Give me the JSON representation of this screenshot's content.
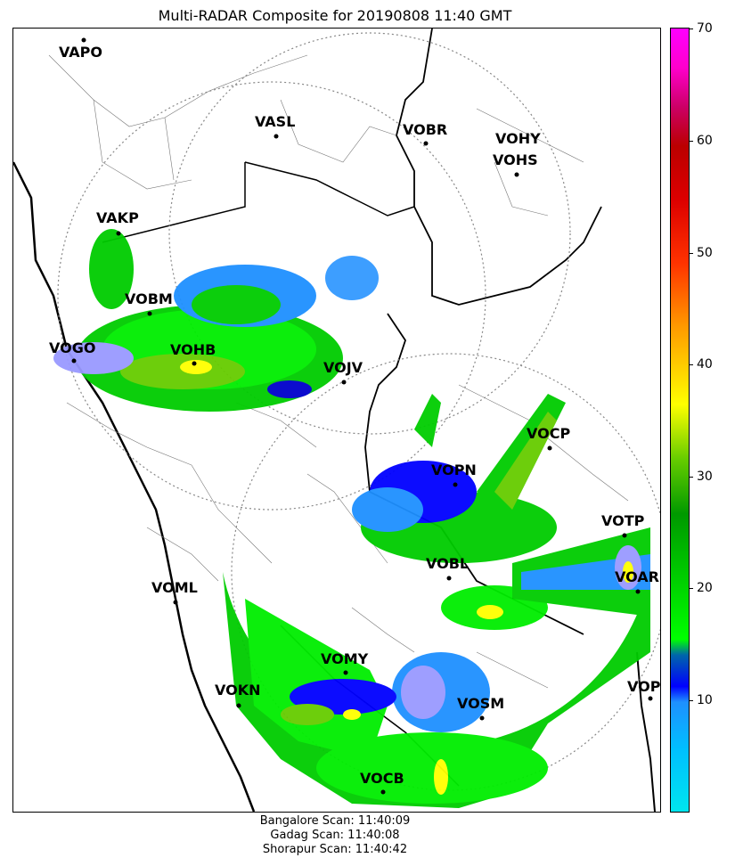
{
  "title": "Multi-RADAR Composite for 20190808 11:40 GMT",
  "stations": [
    {
      "id": "VAPO"
    },
    {
      "id": "VASL"
    },
    {
      "id": "VOBR"
    },
    {
      "id": "VOHY"
    },
    {
      "id": "VOHS"
    },
    {
      "id": "VAKP"
    },
    {
      "id": "VOBM"
    },
    {
      "id": "VOGO"
    },
    {
      "id": "VOHB"
    },
    {
      "id": "VOJV"
    },
    {
      "id": "VOCP"
    },
    {
      "id": "VOPN"
    },
    {
      "id": "VOTP"
    },
    {
      "id": "VOBL"
    },
    {
      "id": "VOAR"
    },
    {
      "id": "VOML"
    },
    {
      "id": "VOMY"
    },
    {
      "id": "VOKN"
    },
    {
      "id": "VOPC"
    },
    {
      "id": "VOSM"
    },
    {
      "id": "VOCB"
    }
  ],
  "colorbar": {
    "ticks": [
      "10",
      "20",
      "30",
      "40",
      "50",
      "60",
      "70"
    ],
    "min": 0,
    "max": 70,
    "colors": [
      "#00e5ee",
      "#00bfff",
      "#1e90ff",
      "#0000ff",
      "#00ff00",
      "#00cc00",
      "#009900",
      "#66cc00",
      "#ffff00",
      "#ffcc00",
      "#ff9900",
      "#ff6600",
      "#ff0000",
      "#cc0000",
      "#ff00cc",
      "#ff00ff"
    ]
  },
  "scans": [
    "Bangalore Scan: 11:40:09",
    "Gadag Scan: 11:40:08",
    "Shorapur Scan: 11:40:42"
  ]
}
